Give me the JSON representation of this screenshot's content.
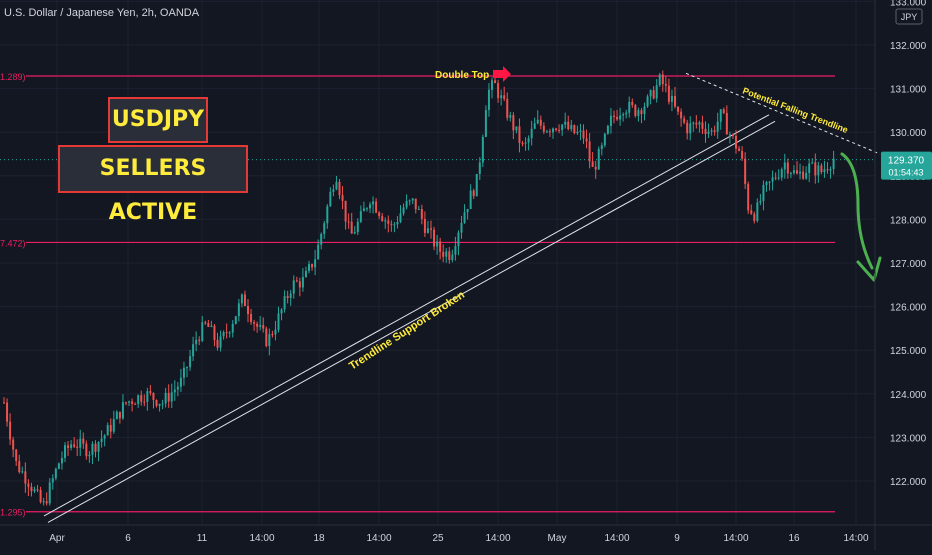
{
  "header": {
    "title": "U.S. Dollar / Japanese Yen, 2h, OANDA"
  },
  "badges": {
    "symbol": "USDJPY",
    "sentiment": "SELLERS ACTIVE"
  },
  "currency_box": "JPY",
  "price_tag": {
    "price": "129.370",
    "countdown": "01:54:43"
  },
  "colors": {
    "background": "#131722",
    "bull": "#26a69a",
    "bear": "#ef5350",
    "level": "#e91e63",
    "annotation": "#ffeb3b",
    "arrow_green": "#4caf50",
    "arrow_red": "#ff1744"
  },
  "chart_data": {
    "type": "candlestick",
    "title": "U.S. Dollar / Japanese Yen, 2h, OANDA",
    "y_axis": {
      "ticks": [
        "133.000",
        "132.000",
        "131.000",
        "130.000",
        "129.000",
        "128.000",
        "127.000",
        "126.000",
        "125.000",
        "124.000",
        "123.000",
        "122.000"
      ],
      "ylim": [
        121.1,
        133.2
      ]
    },
    "x_axis": {
      "ticks": [
        "Apr",
        "6",
        "11",
        "14:00",
        "18",
        "14:00",
        "25",
        "14:00",
        "May",
        "14:00",
        "9",
        "14:00",
        "16",
        "14:00"
      ]
    },
    "levels": [
      {
        "price": 131.289,
        "label": "1.289)"
      },
      {
        "price": 127.472,
        "label": "7.472)"
      },
      {
        "price": 121.295,
        "label": "1.295)"
      }
    ],
    "last_price": 129.37,
    "annotations": {
      "double_top": "Double Top",
      "falling_trendline": "Potential Falling Trendline",
      "support_broken": "Trendline Support Broken"
    },
    "anchors": [
      {
        "t": 0.0,
        "p": 123.8
      },
      {
        "t": 0.5,
        "p": 122.4
      },
      {
        "t": 1.0,
        "p": 122.0
      },
      {
        "t": 1.6,
        "p": 121.4
      },
      {
        "t": 2.3,
        "p": 122.5
      },
      {
        "t": 2.8,
        "p": 122.9
      },
      {
        "t": 3.5,
        "p": 122.7
      },
      {
        "t": 4.2,
        "p": 123.1
      },
      {
        "t": 5.0,
        "p": 123.8
      },
      {
        "t": 5.8,
        "p": 124.0
      },
      {
        "t": 6.5,
        "p": 123.8
      },
      {
        "t": 7.3,
        "p": 124.3
      },
      {
        "t": 7.9,
        "p": 125.3
      },
      {
        "t": 8.3,
        "p": 125.6
      },
      {
        "t": 8.8,
        "p": 125.1
      },
      {
        "t": 9.3,
        "p": 125.6
      },
      {
        "t": 9.8,
        "p": 126.2
      },
      {
        "t": 10.3,
        "p": 125.6
      },
      {
        "t": 10.8,
        "p": 125.2
      },
      {
        "t": 11.3,
        "p": 125.8
      },
      {
        "t": 11.8,
        "p": 126.5
      },
      {
        "t": 12.3,
        "p": 126.6
      },
      {
        "t": 12.8,
        "p": 127.2
      },
      {
        "t": 13.3,
        "p": 128.4
      },
      {
        "t": 13.6,
        "p": 129.1
      },
      {
        "t": 13.9,
        "p": 128.3
      },
      {
        "t": 14.2,
        "p": 127.6
      },
      {
        "t": 14.6,
        "p": 128.0
      },
      {
        "t": 15.0,
        "p": 128.5
      },
      {
        "t": 15.5,
        "p": 128.1
      },
      {
        "t": 15.9,
        "p": 127.8
      },
      {
        "t": 16.4,
        "p": 128.3
      },
      {
        "t": 16.8,
        "p": 128.4
      },
      {
        "t": 17.3,
        "p": 127.8
      },
      {
        "t": 17.8,
        "p": 127.3
      },
      {
        "t": 18.3,
        "p": 127.2
      },
      {
        "t": 18.8,
        "p": 128.1
      },
      {
        "t": 19.4,
        "p": 128.9
      },
      {
        "t": 19.8,
        "p": 130.9
      },
      {
        "t": 20.1,
        "p": 131.1
      },
      {
        "t": 20.5,
        "p": 130.6
      },
      {
        "t": 20.9,
        "p": 130.1
      },
      {
        "t": 21.3,
        "p": 129.6
      },
      {
        "t": 21.8,
        "p": 130.2
      },
      {
        "t": 22.3,
        "p": 130.1
      },
      {
        "t": 22.8,
        "p": 130.2
      },
      {
        "t": 23.3,
        "p": 130.0
      },
      {
        "t": 23.8,
        "p": 129.9
      },
      {
        "t": 24.1,
        "p": 129.1
      },
      {
        "t": 24.5,
        "p": 129.6
      },
      {
        "t": 24.9,
        "p": 130.3
      },
      {
        "t": 25.4,
        "p": 130.6
      },
      {
        "t": 25.9,
        "p": 130.5
      },
      {
        "t": 26.4,
        "p": 130.7
      },
      {
        "t": 26.9,
        "p": 131.2
      },
      {
        "t": 27.2,
        "p": 130.9
      },
      {
        "t": 27.6,
        "p": 130.4
      },
      {
        "t": 28.0,
        "p": 130.1
      },
      {
        "t": 28.5,
        "p": 130.2
      },
      {
        "t": 29.0,
        "p": 130.0
      },
      {
        "t": 29.4,
        "p": 130.4
      },
      {
        "t": 29.8,
        "p": 129.9
      },
      {
        "t": 30.2,
        "p": 129.5
      },
      {
        "t": 30.5,
        "p": 128.3
      },
      {
        "t": 30.8,
        "p": 128.1
      },
      {
        "t": 31.1,
        "p": 128.6
      },
      {
        "t": 31.5,
        "p": 128.9
      },
      {
        "t": 32.0,
        "p": 129.3
      },
      {
        "t": 32.5,
        "p": 129.0
      },
      {
        "t": 33.0,
        "p": 129.2
      },
      {
        "t": 33.5,
        "p": 129.1
      },
      {
        "t": 34.0,
        "p": 129.4
      }
    ]
  }
}
